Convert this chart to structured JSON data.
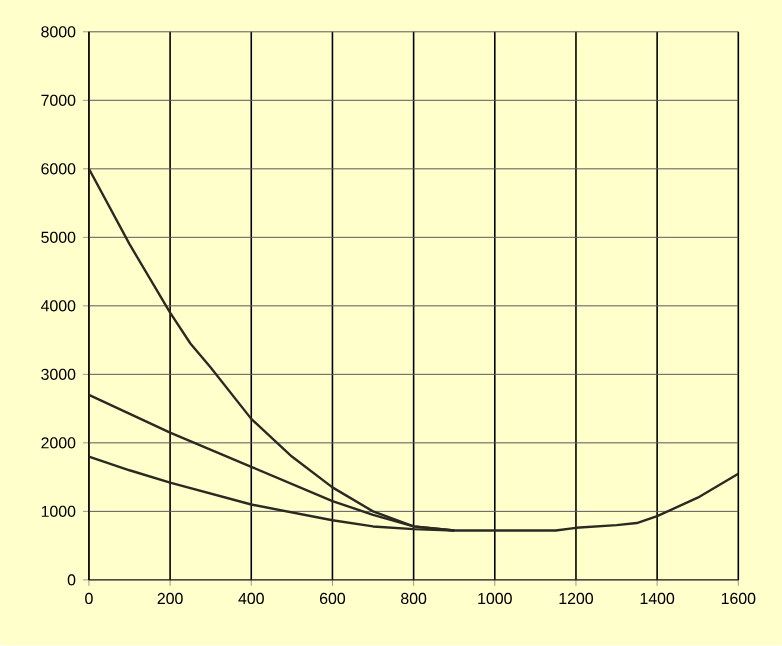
{
  "chart_data": {
    "type": "line",
    "xlim": [
      0,
      1600
    ],
    "ylim": [
      0,
      8000
    ],
    "xticks": [
      0,
      200,
      400,
      600,
      800,
      1000,
      1200,
      1400,
      1600
    ],
    "yticks": [
      0,
      1000,
      2000,
      3000,
      4000,
      5000,
      6000,
      7000,
      8000
    ],
    "grid": true,
    "series": [
      {
        "color": "#2b2a22",
        "x": [
          0,
          100,
          200,
          250,
          300,
          400,
          500,
          600,
          700,
          800,
          900
        ],
        "values": [
          6000,
          4900,
          3900,
          3450,
          3100,
          2350,
          1800,
          1350,
          1000,
          780,
          720
        ]
      },
      {
        "color": "#2b2a22",
        "x": [
          0,
          200,
          400,
          600,
          700,
          800,
          900
        ],
        "values": [
          2700,
          2150,
          1650,
          1150,
          950,
          780,
          720
        ]
      },
      {
        "color": "#2b2a22",
        "x": [
          0,
          100,
          200,
          400,
          600,
          700,
          800,
          900,
          1000,
          1100,
          1150,
          1200,
          1300,
          1350,
          1400,
          1500,
          1600
        ],
        "values": [
          1800,
          1600,
          1420,
          1100,
          870,
          780,
          740,
          720,
          720,
          720,
          720,
          760,
          800,
          830,
          930,
          1200,
          1550
        ]
      }
    ]
  }
}
